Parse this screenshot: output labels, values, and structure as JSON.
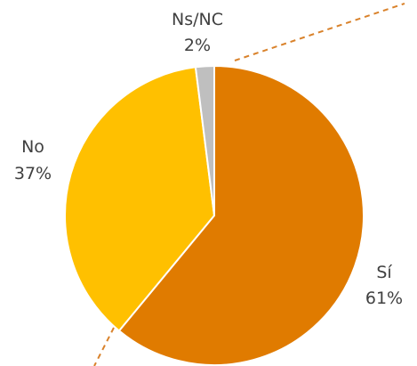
{
  "chart_data": {
    "type": "pie",
    "slices": [
      {
        "label": "Sí",
        "value": 61,
        "value_label": "61%",
        "color": "#E07B00"
      },
      {
        "label": "No",
        "value": 37,
        "value_label": "37%",
        "color": "#FFC000"
      },
      {
        "label": "Ns/NC",
        "value": 2,
        "value_label": "2%",
        "color": "#BFBFBF"
      }
    ],
    "start": "12 o'clock",
    "direction": "clockwise",
    "slice_border_color": "#FFFFFF",
    "connector_line_color": "#D9822B",
    "legend": "none"
  }
}
